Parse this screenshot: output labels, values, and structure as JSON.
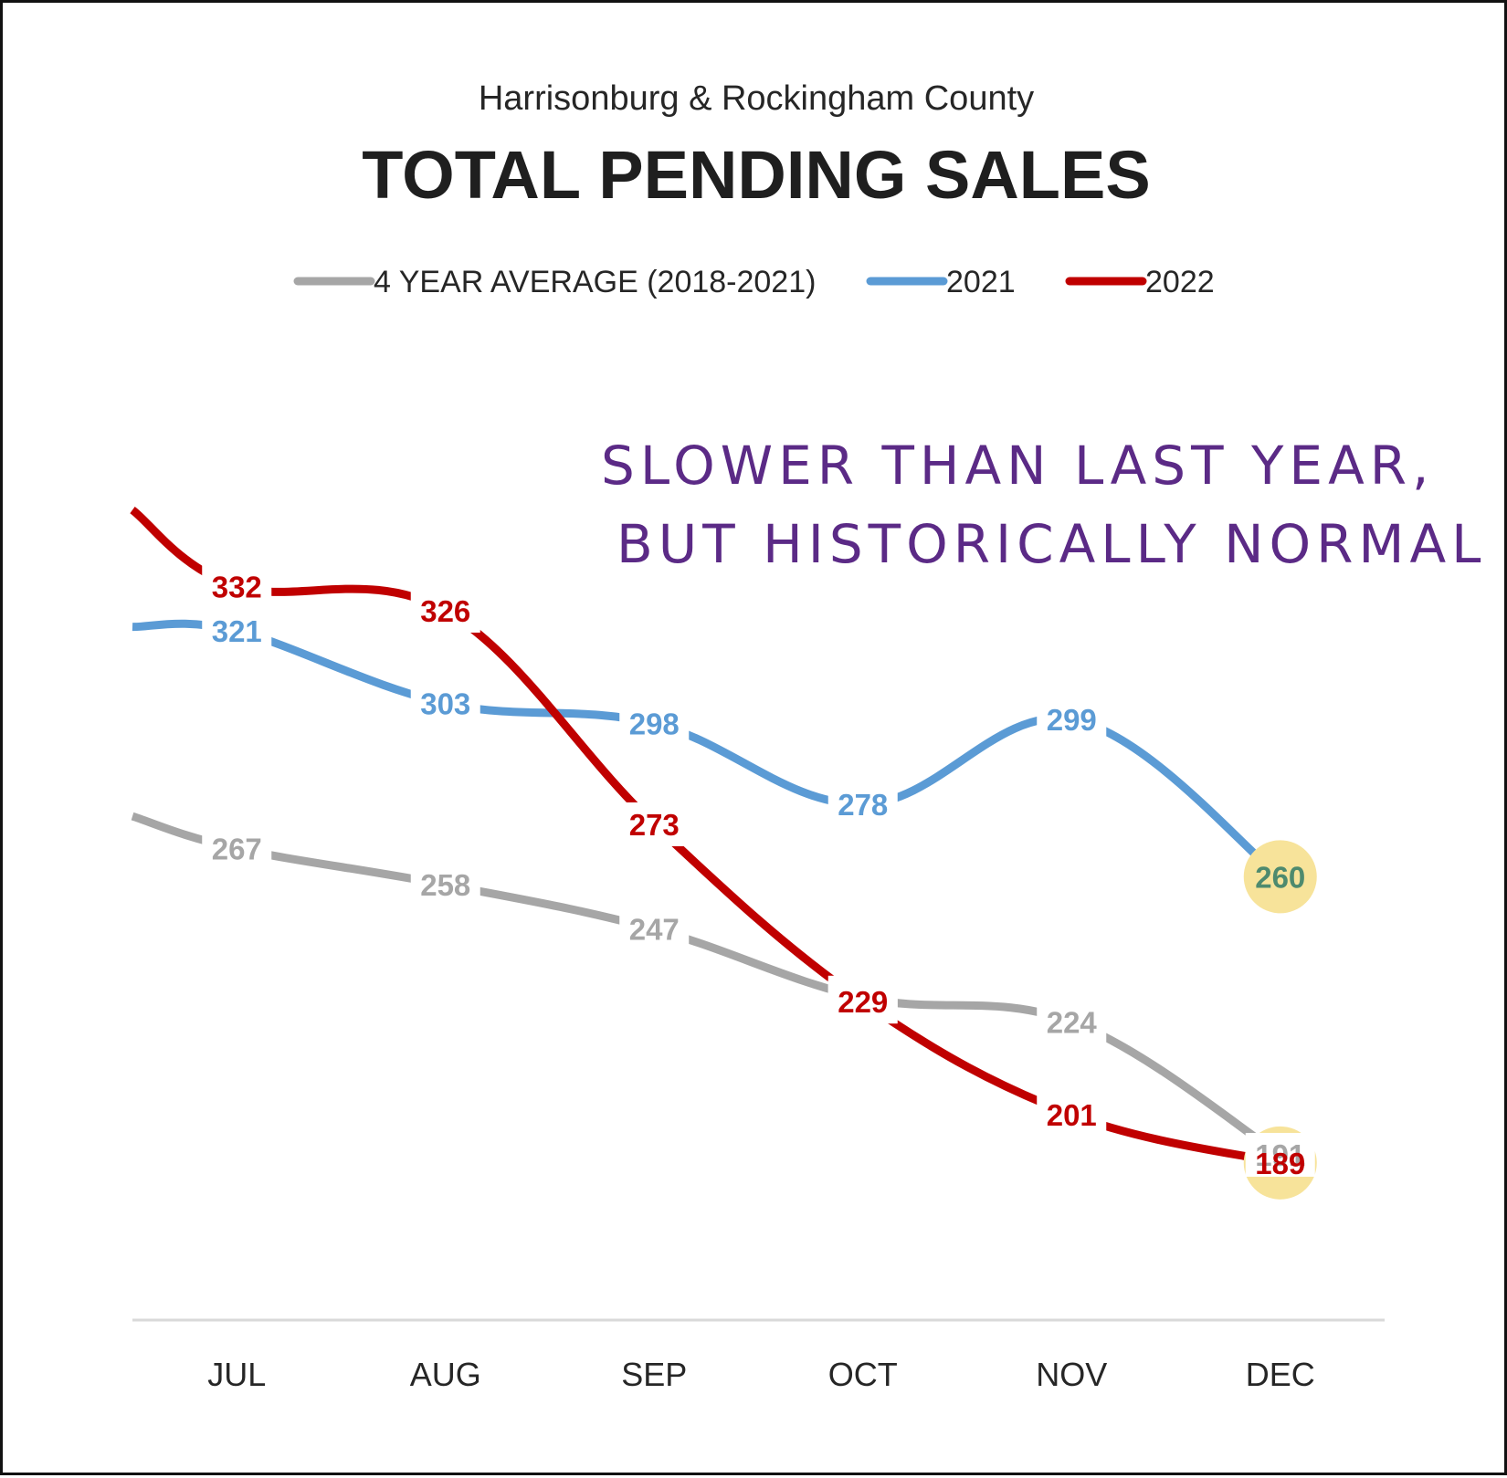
{
  "subtitle": "Harrisonburg & Rockingham County",
  "title": "TOTAL PENDING SALES",
  "annotation": {
    "line1": "SLOWER THAN LAST YEAR,",
    "line2": "BUT HISTORICALLY NORMAL",
    "color": "#5b2a86"
  },
  "highlight_color": "#f7e39a",
  "chart_data": {
    "type": "line",
    "title": "TOTAL PENDING SALES",
    "subtitle": "Harrisonburg & Rockingham County",
    "categories": [
      "JUL",
      "AUG",
      "SEP",
      "OCT",
      "NOV",
      "DEC"
    ],
    "ylim": [
      150,
      350
    ],
    "grid": false,
    "legend_position": "top",
    "series": [
      {
        "name": "4 YEAR AVERAGE (2018-2021)",
        "color": "#a6a6a6",
        "values": [
          267,
          258,
          247,
          230,
          224,
          191
        ],
        "lead_in": 275,
        "label_color": "#a6a6a6"
      },
      {
        "name": "2021",
        "color": "#5b9bd5",
        "values": [
          321,
          303,
          298,
          278,
          299,
          260
        ],
        "lead_in": 322,
        "label_color": "#5b9bd5"
      },
      {
        "name": "2022",
        "color": "#c00000",
        "values": [
          332,
          326,
          273,
          229,
          201,
          189
        ],
        "lead_in": 351,
        "label_color": "#c00000"
      }
    ],
    "highlighted": [
      {
        "series": "2021",
        "category": "DEC",
        "label_color": "#4e8a6e"
      },
      {
        "series": "2022",
        "category": "DEC",
        "label_color": "#c00000"
      }
    ]
  }
}
